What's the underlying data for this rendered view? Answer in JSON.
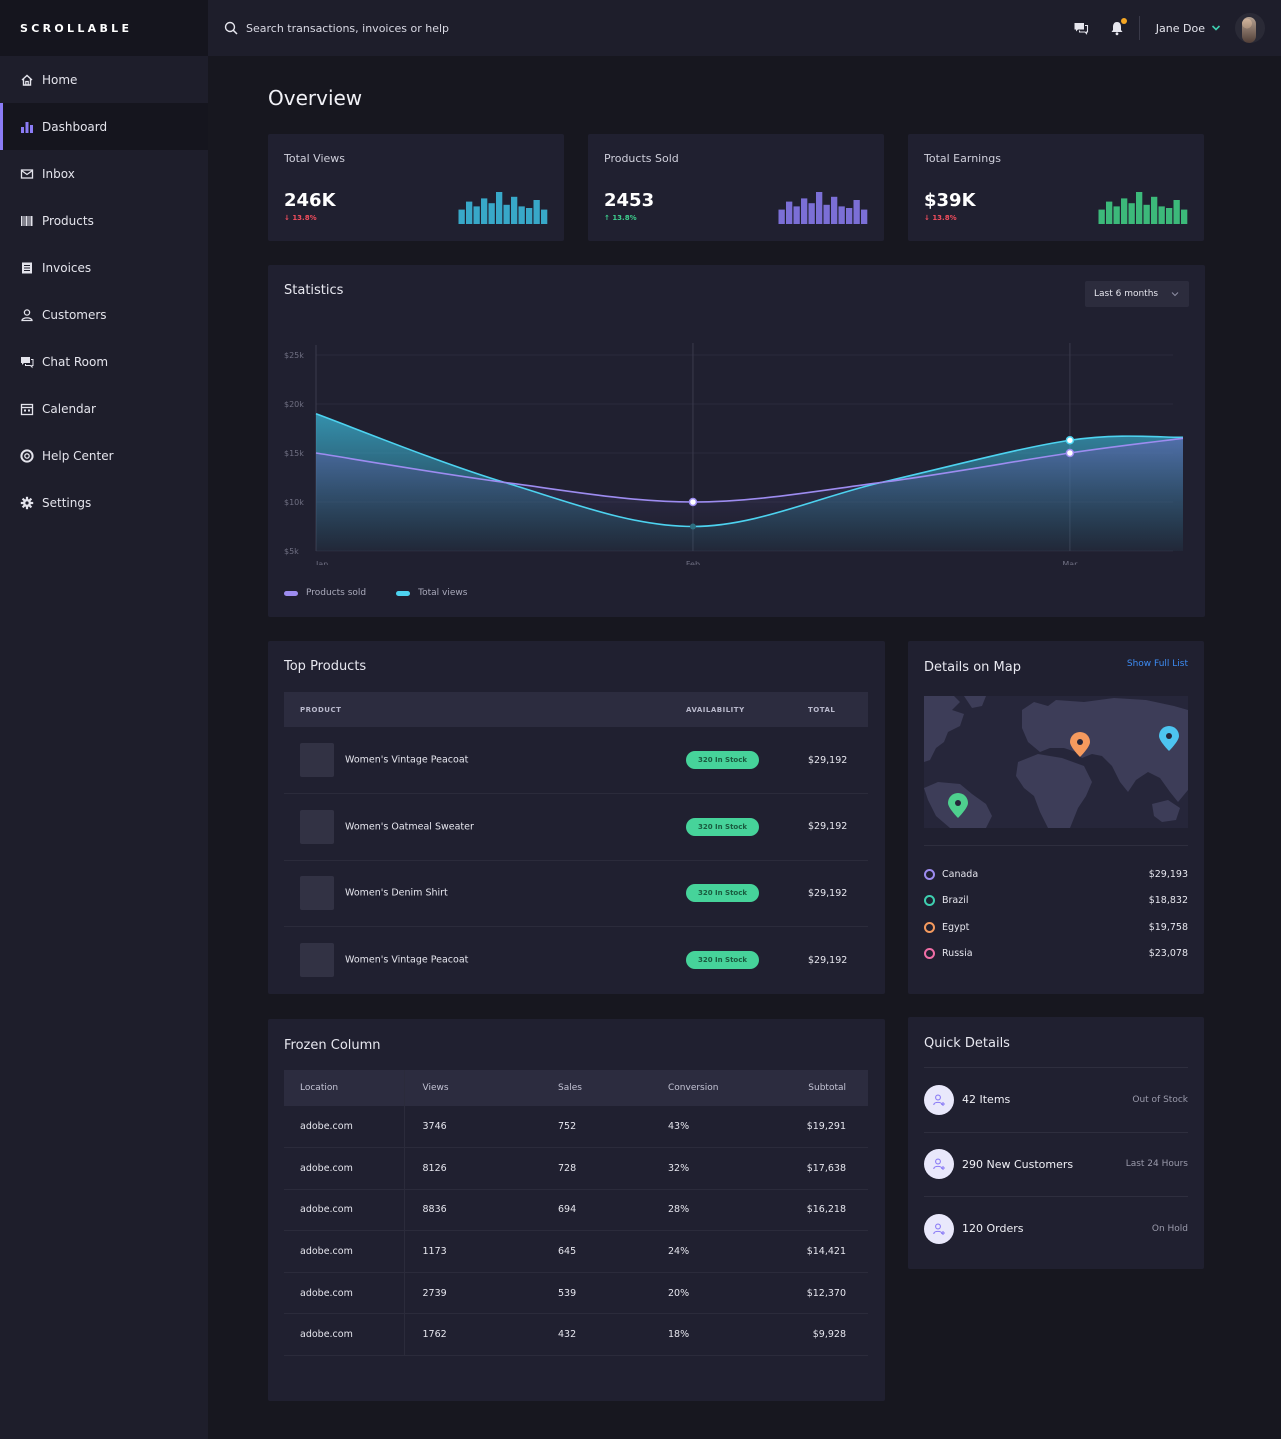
{
  "brand": "SCROLLABLE",
  "search": {
    "placeholder": "Search transactions, invoices or help"
  },
  "user": {
    "name": "Jane Doe"
  },
  "sidebar": {
    "items": [
      {
        "label": "Home",
        "icon": "home-icon"
      },
      {
        "label": "Dashboard",
        "icon": "bar-chart-icon",
        "active": true
      },
      {
        "label": "Inbox",
        "icon": "mail-icon"
      },
      {
        "label": "Products",
        "icon": "barcode-icon"
      },
      {
        "label": "Invoices",
        "icon": "invoice-icon"
      },
      {
        "label": "Customers",
        "icon": "user-icon"
      },
      {
        "label": "Chat Room",
        "icon": "chat-icon"
      },
      {
        "label": "Calendar",
        "icon": "calendar-icon"
      },
      {
        "label": "Help Center",
        "icon": "help-icon"
      },
      {
        "label": "Settings",
        "icon": "gear-icon"
      }
    ]
  },
  "page_title": "Overview",
  "kpis": [
    {
      "label": "Total Views",
      "value": "246K",
      "delta": "13.8%",
      "direction": "down",
      "bar_color": "#38a8c8",
      "bars": [
        0.45,
        0.7,
        0.55,
        0.8,
        0.65,
        1.0,
        0.6,
        0.85,
        0.55,
        0.5,
        0.75,
        0.45
      ]
    },
    {
      "label": "Products Sold",
      "value": "2453",
      "delta": "13.8%",
      "direction": "up",
      "bar_color": "#7b6fd6",
      "bars": [
        0.45,
        0.7,
        0.55,
        0.8,
        0.65,
        1.0,
        0.6,
        0.85,
        0.55,
        0.5,
        0.75,
        0.45
      ]
    },
    {
      "label": "Total Earnings",
      "value": "$39K",
      "delta": "13.8%",
      "direction": "down",
      "bar_color": "#3cb97a",
      "bars": [
        0.45,
        0.7,
        0.55,
        0.8,
        0.65,
        1.0,
        0.6,
        0.85,
        0.55,
        0.5,
        0.75,
        0.45
      ]
    }
  ],
  "statistics": {
    "title": "Statistics",
    "range_label": "Last 6 months"
  },
  "chart_data": {
    "type": "area",
    "x": [
      "Jan",
      "Feb",
      "Mar"
    ],
    "y_ticks": [
      "$25k",
      "$20k",
      "$15k",
      "$10k",
      "$5k"
    ],
    "ylim": [
      5,
      25
    ],
    "grid": true,
    "legend": "bottom-left",
    "series": [
      {
        "name": "Products sold",
        "color": "#9d8cf0",
        "x": [
          0,
          0.5,
          1,
          1.5,
          2,
          2.3
        ],
        "values": [
          15,
          12,
          10,
          12,
          15,
          16.5
        ]
      },
      {
        "name": "Total views",
        "color": "#4dd3f0",
        "x": [
          0,
          0.5,
          1,
          1.5,
          2,
          2.3
        ],
        "values": [
          19,
          12,
          7.5,
          12,
          16.3,
          16.6
        ]
      }
    ]
  },
  "top_products": {
    "title": "Top Products",
    "columns": [
      "PRODUCT",
      "AVAILABILITY",
      "TOTAL"
    ],
    "rows": [
      {
        "name": "Women's Vintage Peacoat",
        "availability": "320 In Stock",
        "total": "$29,192"
      },
      {
        "name": "Women's Oatmeal Sweater",
        "availability": "320 In Stock",
        "total": "$29,192"
      },
      {
        "name": "Women's Denim Shirt",
        "availability": "320 In Stock",
        "total": "$29,192"
      },
      {
        "name": "Women's Vintage Peacoat",
        "availability": "320 In Stock",
        "total": "$29,192"
      }
    ]
  },
  "map": {
    "title": "Details on Map",
    "link": "Show Full List",
    "locations": [
      {
        "name": "Canada",
        "value": "$29,193",
        "color": "#9d8cf0"
      },
      {
        "name": "Brazil",
        "value": "$18,832",
        "color": "#3ecfb0"
      },
      {
        "name": "Egypt",
        "value": "$19,758",
        "color": "#f59a5e"
      },
      {
        "name": "Russia",
        "value": "$23,078",
        "color": "#f06ea6"
      }
    ]
  },
  "frozen": {
    "title": "Frozen Column",
    "columns": [
      "Location",
      "Views",
      "Sales",
      "Conversion",
      "Subtotal"
    ],
    "rows": [
      [
        "adobe.com",
        "3746",
        "752",
        "43%",
        "$19,291"
      ],
      [
        "adobe.com",
        "8126",
        "728",
        "32%",
        "$17,638"
      ],
      [
        "adobe.com",
        "8836",
        "694",
        "28%",
        "$16,218"
      ],
      [
        "adobe.com",
        "1173",
        "645",
        "24%",
        "$14,421"
      ],
      [
        "adobe.com",
        "2739",
        "539",
        "20%",
        "$12,370"
      ],
      [
        "adobe.com",
        "1762",
        "432",
        "18%",
        "$9,928"
      ]
    ]
  },
  "quick_details": {
    "title": "Quick Details",
    "items": [
      {
        "label": "42 Items",
        "status": "Out of Stock"
      },
      {
        "label": "290 New Customers",
        "status": "Last 24 Hours"
      },
      {
        "label": "120 Orders",
        "status": "On Hold"
      }
    ]
  }
}
